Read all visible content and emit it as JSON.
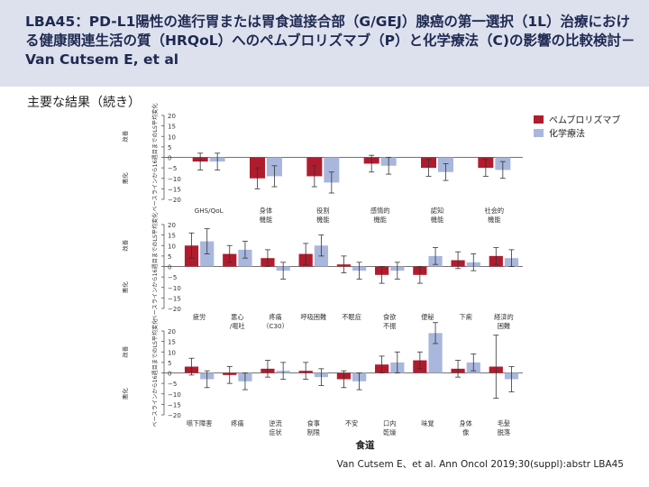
{
  "header": {
    "title": "LBA45：PD-L1陽性の進行胃または胃食道接合部（G/GEJ）腺癌の第一選択（1L）治療における健康関連生活の質（HRQoL）へのペムブロリズマブ（P）と化学療法（C)の影響の比較検討－Van Cutsem E, et al"
  },
  "section_title": "主要な結果（続き）",
  "citation": "Van Cutsem E、et al. Ann Oncol 2019;30(suppl):abstr LBA45",
  "colors": {
    "header_bg": "#dde1ee",
    "pembrolizumab": "#b01c2e",
    "chemotherapy": "#a9b7dd",
    "title": "#1f2a52"
  },
  "chart_data": [
    {
      "type": "bar",
      "ylabel": "ベースラインから16週目までのLS平均変化",
      "improve_label": "改善",
      "worsen_label": "悪化",
      "ylim": [
        -20,
        20
      ],
      "yticks": [
        20,
        15,
        10,
        5,
        0,
        -5,
        -10,
        -15,
        -20
      ],
      "categories": [
        "GHS/QoL",
        "身体\n機能",
        "役割\n機能",
        "感情的\n機能",
        "認知\n機能",
        "社会的\n機能"
      ],
      "series": [
        {
          "name": "ペムブロリズマブ",
          "values": [
            -2,
            -10,
            -9,
            -3,
            -5,
            -5
          ],
          "err": [
            4,
            5,
            5,
            4,
            4,
            4
          ]
        },
        {
          "name": "化学療法",
          "values": [
            -2,
            -9,
            -12,
            -4,
            -7,
            -6
          ],
          "err": [
            4,
            5,
            5,
            4,
            4,
            4
          ]
        }
      ],
      "legend_position": "top-right"
    },
    {
      "type": "bar",
      "ylabel": "ベースラインから16週目までのLS平均変化",
      "improve_label": "改善",
      "worsen_label": "悪化",
      "ylim": [
        -20,
        20
      ],
      "yticks": [
        20,
        15,
        10,
        5,
        0,
        -5,
        -10,
        -15,
        -20
      ],
      "categories": [
        "疲労",
        "悪心\n/嘔吐",
        "疼痛\n（C30）",
        "呼吸困難",
        "不眠症",
        "食欲\n不振",
        "便秘",
        "下痢",
        "経済的\n困難"
      ],
      "series": [
        {
          "name": "ペムブロリズマブ",
          "values": [
            10,
            6,
            4,
            6,
            1,
            -4,
            -4,
            3,
            5
          ],
          "err": [
            6,
            4,
            4,
            5,
            4,
            4,
            4,
            4,
            4
          ]
        },
        {
          "name": "化学療法",
          "values": [
            12,
            8,
            -2,
            10,
            -2,
            -2,
            5,
            2,
            4
          ],
          "err": [
            6,
            4,
            4,
            5,
            4,
            4,
            4,
            4,
            4
          ]
        }
      ]
    },
    {
      "type": "bar",
      "ylabel": "ベースラインから16週目までのLS平均変化",
      "improve_label": "改善",
      "worsen_label": "悪化",
      "ylim": [
        -20,
        20
      ],
      "yticks": [
        20,
        15,
        10,
        5,
        0,
        -5,
        -10,
        -15,
        -20
      ],
      "categories": [
        "嚥下障害",
        "疼痛",
        "逆流\n症状",
        "食事\n制限",
        "不安",
        "口内\n乾燥",
        "味覚",
        "身体\n像",
        "毛髪\n脱落"
      ],
      "series": [
        {
          "name": "ペムブロリズマブ",
          "values": [
            3,
            -1,
            2,
            1,
            -3,
            4,
            6,
            2,
            3
          ],
          "err": [
            4,
            4,
            4,
            4,
            4,
            4,
            4,
            4,
            15
          ]
        },
        {
          "name": "化学療法",
          "values": [
            -3,
            -4,
            1,
            -2,
            -4,
            5,
            19,
            5,
            -3
          ],
          "err": [
            4,
            4,
            4,
            4,
            4,
            5,
            5,
            4,
            6
          ]
        }
      ],
      "xlabel": "食道"
    }
  ]
}
